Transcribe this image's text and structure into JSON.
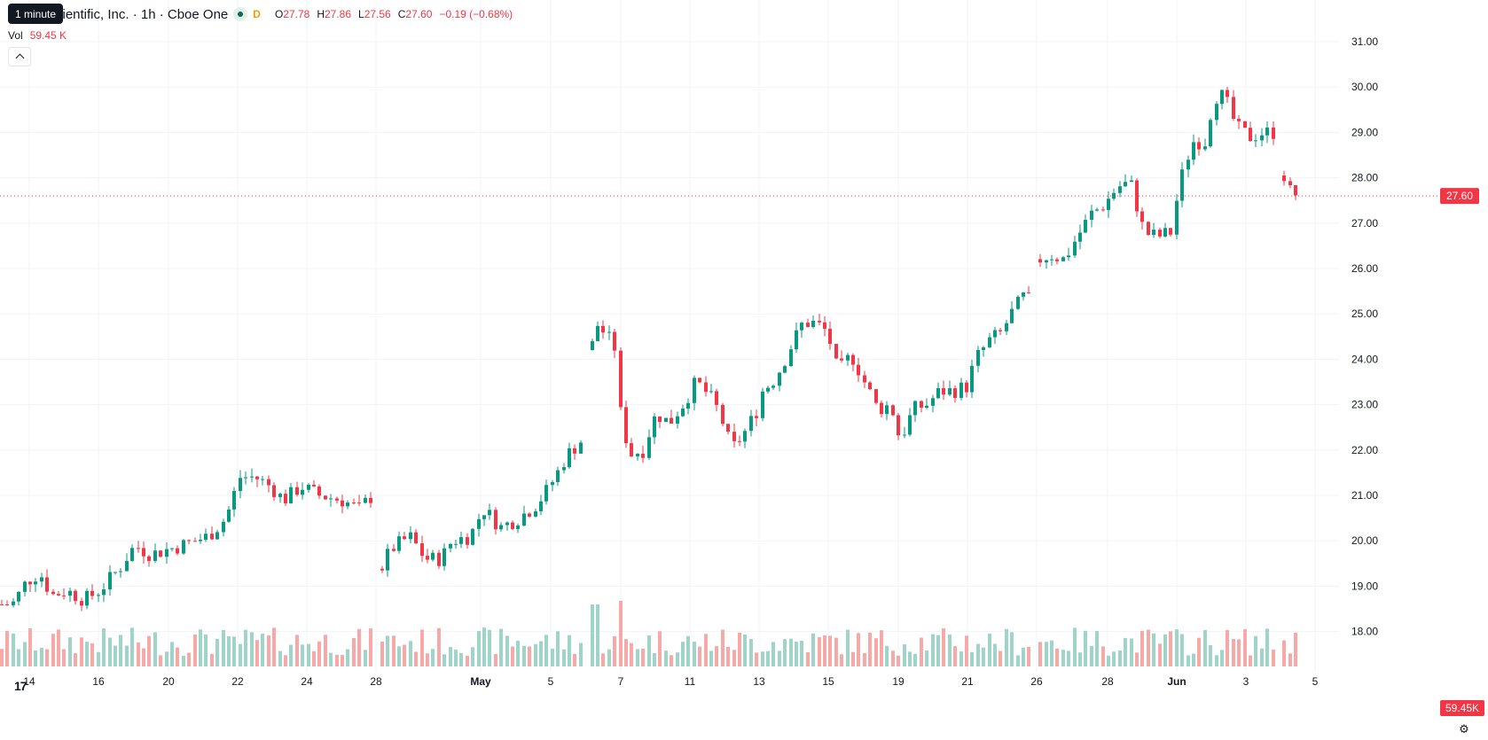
{
  "legend": {
    "title": "cientific, Inc. · 1h · Cboe One",
    "interval_badge": "D",
    "open_label": "O",
    "open": "27.78",
    "high_label": "H",
    "high": "27.86",
    "low_label": "L",
    "low": "27.56",
    "close_label": "C",
    "close": "27.60",
    "change": "−0.19 (−0.68%)"
  },
  "tooltip": {
    "text": "1 minute"
  },
  "volume": {
    "label": "Vol",
    "value": "59.45 K",
    "axis_badge": "59.45K"
  },
  "price_badge": "27.60",
  "logo_text": "17",
  "settings_icon": "⚙",
  "colors": {
    "up": "#089981",
    "down": "#f23645",
    "up_vol": "#9fd5c8",
    "down_vol": "#f7a9a7"
  },
  "chart_data": {
    "type": "candlestick",
    "y_ticks": [
      "31.00",
      "30.00",
      "29.00",
      "28.00",
      "27.00",
      "26.00",
      "25.00",
      "24.00",
      "23.00",
      "22.00",
      "21.00",
      "20.00",
      "19.00",
      "18.00"
    ],
    "ylim": [
      17.4,
      31.4
    ],
    "x_ticks": [
      "14",
      "16",
      "20",
      "22",
      "24",
      "28",
      "May",
      "5",
      "7",
      "11",
      "13",
      "15",
      "19",
      "21",
      "26",
      "28",
      "Jun",
      "3",
      "5"
    ],
    "grid": true,
    "last_price": 27.6,
    "anchors": [
      [
        0,
        18.6
      ],
      [
        14,
        18.6
      ],
      [
        30,
        19.1
      ],
      [
        45,
        19.3
      ],
      [
        58,
        18.8
      ],
      [
        75,
        18.9
      ],
      [
        95,
        18.7
      ],
      [
        112,
        18.9
      ],
      [
        135,
        19.4
      ],
      [
        152,
        19.9
      ],
      [
        170,
        19.7
      ],
      [
        205,
        19.9
      ],
      [
        235,
        20.1
      ],
      [
        255,
        20.5
      ],
      [
        270,
        21.4
      ],
      [
        288,
        21.4
      ],
      [
        305,
        21.2
      ],
      [
        320,
        20.9
      ],
      [
        340,
        21.2
      ],
      [
        360,
        21.0
      ],
      [
        385,
        20.9
      ],
      [
        405,
        20.7
      ],
      [
        420,
        21.0
      ],
      [
        428,
        19.3
      ],
      [
        440,
        19.8
      ],
      [
        462,
        20.1
      ],
      [
        480,
        19.6
      ],
      [
        497,
        19.6
      ],
      [
        510,
        20.0
      ],
      [
        530,
        20.1
      ],
      [
        545,
        20.7
      ],
      [
        565,
        20.3
      ],
      [
        585,
        20.5
      ],
      [
        605,
        20.8
      ],
      [
        620,
        21.2
      ],
      [
        640,
        21.9
      ],
      [
        655,
        22.2
      ],
      [
        662,
        23.6
      ],
      [
        672,
        24.8
      ],
      [
        685,
        24.5
      ],
      [
        695,
        24.2
      ],
      [
        698,
        23.0
      ],
      [
        710,
        21.9
      ],
      [
        725,
        22.0
      ],
      [
        740,
        22.8
      ],
      [
        755,
        22.6
      ],
      [
        770,
        23.0
      ],
      [
        785,
        23.5
      ],
      [
        800,
        23.2
      ],
      [
        812,
        22.8
      ],
      [
        825,
        22.0
      ],
      [
        840,
        22.4
      ],
      [
        852,
        22.8
      ],
      [
        860,
        23.3
      ],
      [
        875,
        23.6
      ],
      [
        890,
        24.2
      ],
      [
        905,
        24.8
      ],
      [
        920,
        24.8
      ],
      [
        933,
        24.6
      ],
      [
        945,
        23.7
      ],
      [
        960,
        24.1
      ],
      [
        975,
        23.5
      ],
      [
        990,
        22.9
      ],
      [
        1005,
        23.0
      ],
      [
        1015,
        22.2
      ],
      [
        1030,
        22.9
      ],
      [
        1045,
        23.0
      ],
      [
        1060,
        23.3
      ],
      [
        1075,
        23.3
      ],
      [
        1090,
        23.4
      ],
      [
        1100,
        24.0
      ],
      [
        1115,
        24.4
      ],
      [
        1130,
        24.6
      ],
      [
        1140,
        25.0
      ],
      [
        1155,
        25.4
      ],
      [
        1165,
        25.2
      ],
      [
        1172,
        26.2
      ],
      [
        1185,
        26.3
      ],
      [
        1200,
        26.2
      ],
      [
        1215,
        26.7
      ],
      [
        1230,
        27.2
      ],
      [
        1245,
        27.4
      ],
      [
        1260,
        27.8
      ],
      [
        1275,
        27.9
      ],
      [
        1290,
        26.8
      ],
      [
        1305,
        26.7
      ],
      [
        1320,
        26.8
      ],
      [
        1332,
        28.0
      ],
      [
        1345,
        28.8
      ],
      [
        1360,
        28.8
      ],
      [
        1368,
        29.8
      ],
      [
        1380,
        29.8
      ],
      [
        1395,
        29.1
      ],
      [
        1410,
        28.9
      ],
      [
        1425,
        29.0
      ],
      [
        1440,
        29.0
      ],
      [
        1445,
        28.2
      ],
      [
        1455,
        27.7
      ],
      [
        1465,
        27.6
      ]
    ],
    "gaps": [
      [
        421,
        427
      ],
      [
        656,
        661
      ],
      [
        696,
        697
      ],
      [
        1166,
        1171
      ],
      [
        1441,
        1444
      ]
    ],
    "volume_spikes": [
      [
        661,
        47
      ],
      [
        671,
        35
      ],
      [
        701,
        37
      ],
      [
        698,
        18
      ],
      [
        232,
        18
      ],
      [
        258,
        17
      ],
      [
        430,
        14
      ],
      [
        780,
        14
      ],
      [
        1368,
        12
      ]
    ]
  }
}
